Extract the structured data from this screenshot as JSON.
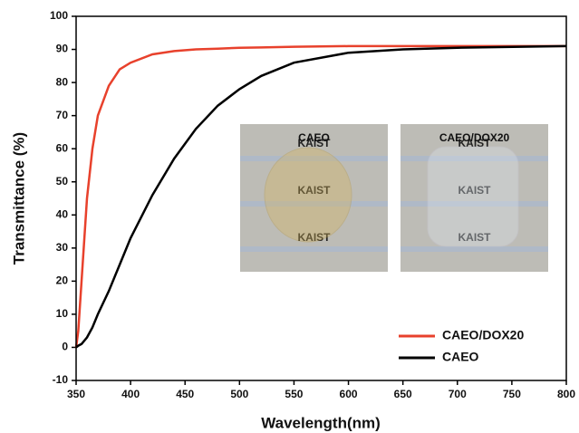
{
  "chart_data": {
    "type": "line",
    "x_label": "Wavelength(nm)",
    "y_label": "Transmittance (%)",
    "x": [
      350,
      352,
      355,
      360,
      365,
      370,
      380,
      390,
      400,
      420,
      440,
      460,
      480,
      500,
      520,
      550,
      600,
      650,
      700,
      800
    ],
    "series": [
      {
        "name": "CAEO/DOX20",
        "color": "#e8412c",
        "values": [
          0,
          5,
          20,
          45,
          60,
          70,
          79,
          84,
          86,
          88.5,
          89.5,
          90,
          90.2,
          90.5,
          90.6,
          90.8,
          91,
          91,
          91,
          91
        ]
      },
      {
        "name": "CAEO",
        "color": "#000000",
        "values": [
          0,
          0.5,
          1,
          3,
          6,
          10,
          17,
          25,
          33,
          46,
          57,
          66,
          73,
          78,
          82,
          86,
          89,
          90,
          90.5,
          91
        ]
      }
    ],
    "xlim": [
      350,
      800
    ],
    "xticks": [
      350,
      400,
      450,
      500,
      550,
      600,
      650,
      700,
      750,
      800
    ],
    "ylim": [
      -10,
      100
    ],
    "yticks": [
      -10,
      0,
      10,
      20,
      30,
      40,
      50,
      60,
      70,
      80,
      90,
      100
    ],
    "insets": [
      {
        "label": "CAEO",
        "words": [
          "KAIST",
          "KAIST",
          "KAIST"
        ]
      },
      {
        "label": "CAEO/DOX20",
        "words": [
          "KAIST",
          "KAIST",
          "KAIST"
        ]
      }
    ]
  }
}
